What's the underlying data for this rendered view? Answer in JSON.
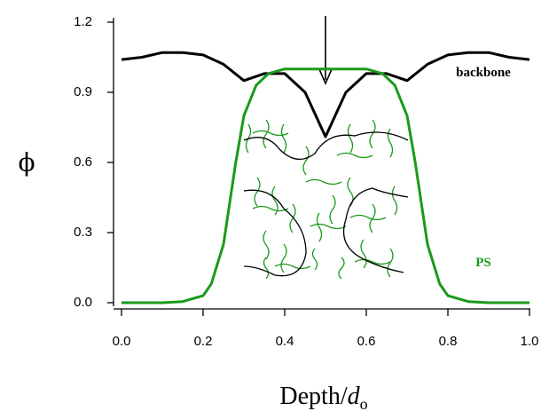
{
  "chart_data": {
    "type": "line",
    "y_label": "ϕ",
    "x_label_parts": [
      "Depth/",
      "d",
      "o"
    ],
    "annotations": [
      "backbone",
      "PS"
    ],
    "xlim": [
      0,
      1
    ],
    "xticks": [
      {
        "value": 0,
        "label": "0.0"
      },
      0.2,
      0.4,
      0.6,
      0.8,
      {
        "value": 1,
        "label": "1.0"
      }
    ],
    "ylim": [
      0,
      1.2
    ],
    "yticks": [
      {
        "value": 0,
        "label": "0.0"
      },
      0.3,
      0.6,
      0.9,
      1.2
    ],
    "series": [
      {
        "name": "backbone",
        "color": "#000000",
        "x": [
          0,
          0.05,
          0.1,
          0.15,
          0.2,
          0.25,
          0.3,
          0.35,
          0.4,
          0.45,
          0.5,
          0.55,
          0.6,
          0.65,
          0.7,
          0.75,
          0.8,
          0.85,
          0.9,
          0.95,
          1
        ],
        "values": [
          1.04,
          1.05,
          1.07,
          1.07,
          1.06,
          1.02,
          0.95,
          0.98,
          0.98,
          0.9,
          0.71,
          0.9,
          0.98,
          0.98,
          0.95,
          1.02,
          1.06,
          1.07,
          1.07,
          1.05,
          1.04
        ]
      },
      {
        "name": "PS",
        "color": "#1a9a1a",
        "x": [
          0,
          0.1,
          0.15,
          0.2,
          0.22,
          0.25,
          0.28,
          0.3,
          0.33,
          0.36,
          0.4,
          0.5,
          0.6,
          0.64,
          0.67,
          0.7,
          0.72,
          0.75,
          0.78,
          0.8,
          0.85,
          0.9,
          1
        ],
        "values": [
          0,
          0,
          0.005,
          0.03,
          0.08,
          0.25,
          0.6,
          0.8,
          0.93,
          0.98,
          1,
          1,
          1,
          0.98,
          0.93,
          0.8,
          0.6,
          0.25,
          0.08,
          0.03,
          0.005,
          0,
          0
        ]
      }
    ]
  }
}
